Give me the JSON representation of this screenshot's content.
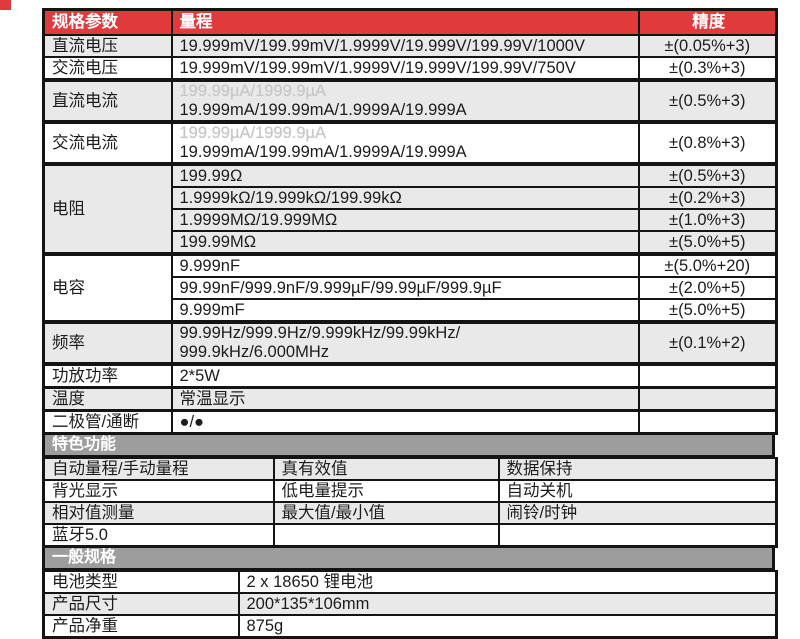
{
  "colors": {
    "header_red": "#e03a3c",
    "row_gray": "#e9e9e9",
    "section_bar_gray": "#9d9d9d",
    "border_black": "#141414",
    "faint_text": "#c6c6c6"
  },
  "header": {
    "param": "规格参数",
    "range": "量程",
    "accuracy": "精度"
  },
  "specs": {
    "dcv": {
      "label": "直流电压",
      "range": "19.999mV/199.99mV/1.9999V/19.999V/199.99V/1000V",
      "acc": "±(0.05%+3)"
    },
    "acv": {
      "label": "交流电压",
      "range": "19.999mV/199.99mV/1.9999V/19.999V/199.99V/750V",
      "acc": "±(0.3%+3)"
    },
    "dca": {
      "label": "直流电流",
      "range_line1_faint": "199.99µA/1999.9µA",
      "range_line2": "19.999mA/199.99mA/1.9999A/19.999A",
      "acc": "±(0.5%+3)"
    },
    "aca": {
      "label": "交流电流",
      "range_line1_faint": "199.99µA/1999.9µA",
      "range_line2": "19.999mA/199.99mA/1.9999A/19.999A",
      "acc": "±(0.8%+3)"
    },
    "res": {
      "label": "电阻",
      "rows": [
        {
          "range": "199.99Ω",
          "acc": "±(0.5%+3)"
        },
        {
          "range": "1.9999kΩ/19.999kΩ/199.99kΩ",
          "acc": "±(0.2%+3)"
        },
        {
          "range": "1.9999MΩ/19.999MΩ",
          "acc": "±(1.0%+3)"
        },
        {
          "range": "199.99MΩ",
          "acc": "±(5.0%+5)"
        }
      ]
    },
    "cap": {
      "label": "电容",
      "rows": [
        {
          "range": "9.999nF",
          "acc": "±(5.0%+20)"
        },
        {
          "range": "99.99nF/999.9nF/9.999µF/99.99µF/999.9µF",
          "acc": "±(2.0%+5)"
        },
        {
          "range": "9.999mF",
          "acc": "±(5.0%+5)"
        }
      ]
    },
    "freq": {
      "label": "频率",
      "range_line1": "99.99Hz/999.9Hz/9.999kHz/99.99kHz/",
      "range_line2": "999.9kHz/6.000MHz",
      "acc": "±(0.1%+2)"
    },
    "amp": {
      "label": "功放功率",
      "range": "2*5W",
      "acc": ""
    },
    "temp": {
      "label": "温度",
      "range": "常温显示",
      "acc": ""
    },
    "diode": {
      "label": "二极管/通断",
      "range": "●/●",
      "acc": ""
    }
  },
  "features": {
    "title": "特色功能",
    "rows": [
      [
        "自动量程/手动量程",
        "真有效值",
        "数据保持"
      ],
      [
        "背光显示",
        "低电量提示",
        "自动关机"
      ],
      [
        "相对值测量",
        "最大值/最小值",
        "闹铃/时钟"
      ],
      [
        "蓝牙5.0",
        "",
        ""
      ]
    ]
  },
  "general": {
    "title": "一般规格",
    "rows": [
      {
        "label": "电池类型",
        "value": "2 x 18650 锂电池"
      },
      {
        "label": "产品尺寸",
        "value": "200*135*106mm"
      },
      {
        "label": "产品净重",
        "value": "875g"
      }
    ]
  }
}
